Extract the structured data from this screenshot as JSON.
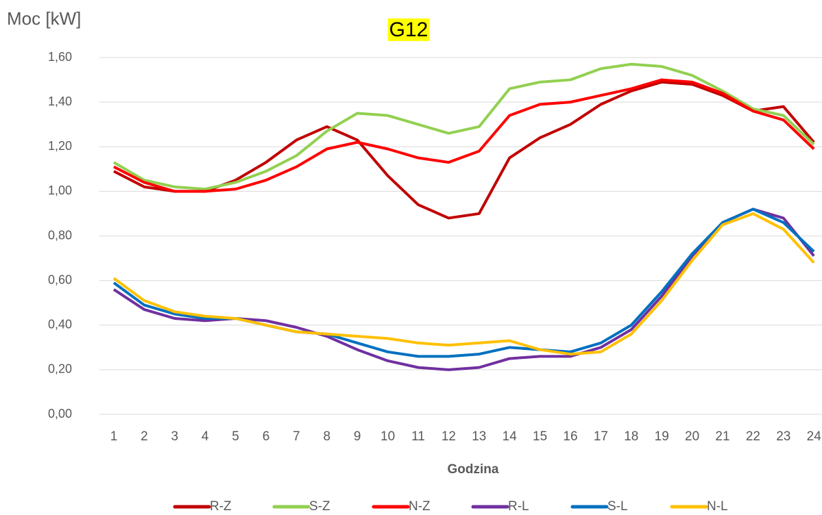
{
  "chart_data": {
    "type": "line",
    "title": "G12",
    "y_label": "Moc [kW]",
    "x_label": "Godzina",
    "categories": [
      "1",
      "2",
      "3",
      "4",
      "5",
      "6",
      "7",
      "8",
      "9",
      "10",
      "11",
      "12",
      "13",
      "14",
      "15",
      "16",
      "17",
      "18",
      "19",
      "20",
      "21",
      "22",
      "23",
      "24"
    ],
    "ylim": [
      0,
      1.6
    ],
    "yticks": [
      {
        "value": 0,
        "label": "0,00"
      },
      {
        "value": 0.2,
        "label": "0,20"
      },
      {
        "value": 0.4,
        "label": "0,40"
      },
      {
        "value": 0.6,
        "label": "0,60"
      },
      {
        "value": 0.8,
        "label": "0,80"
      },
      {
        "value": 1.0,
        "label": "1,00"
      },
      {
        "value": 1.2,
        "label": "1,20"
      },
      {
        "value": 1.4,
        "label": "1,40"
      },
      {
        "value": 1.6,
        "label": "1,60"
      }
    ],
    "grid": true,
    "legend": "bottom",
    "series": [
      {
        "name": "R-Z",
        "color": "#c00000",
        "values": [
          1.09,
          1.02,
          1.0,
          1.0,
          1.05,
          1.13,
          1.23,
          1.29,
          1.23,
          1.07,
          0.94,
          0.88,
          0.9,
          1.15,
          1.24,
          1.3,
          1.39,
          1.45,
          1.49,
          1.48,
          1.43,
          1.36,
          1.38,
          1.22
        ]
      },
      {
        "name": "S-Z",
        "color": "#92d050",
        "values": [
          1.13,
          1.05,
          1.02,
          1.01,
          1.04,
          1.09,
          1.16,
          1.27,
          1.35,
          1.34,
          1.3,
          1.26,
          1.29,
          1.46,
          1.49,
          1.5,
          1.55,
          1.57,
          1.56,
          1.52,
          1.45,
          1.37,
          1.34,
          1.21
        ]
      },
      {
        "name": "N-Z",
        "color": "#ff0000",
        "values": [
          1.11,
          1.04,
          1.0,
          1.0,
          1.01,
          1.05,
          1.11,
          1.19,
          1.22,
          1.19,
          1.15,
          1.13,
          1.18,
          1.34,
          1.39,
          1.4,
          1.43,
          1.46,
          1.5,
          1.49,
          1.44,
          1.36,
          1.32,
          1.19
        ]
      },
      {
        "name": "R-L",
        "color": "#7030a0",
        "values": [
          0.56,
          0.47,
          0.43,
          0.42,
          0.43,
          0.42,
          0.39,
          0.35,
          0.29,
          0.24,
          0.21,
          0.2,
          0.21,
          0.25,
          0.26,
          0.26,
          0.3,
          0.38,
          0.53,
          0.71,
          0.86,
          0.92,
          0.88,
          0.71
        ]
      },
      {
        "name": "S-L",
        "color": "#0070c0",
        "values": [
          0.59,
          0.49,
          0.45,
          0.43,
          0.43,
          0.4,
          0.37,
          0.36,
          0.32,
          0.28,
          0.26,
          0.26,
          0.27,
          0.3,
          0.29,
          0.28,
          0.32,
          0.4,
          0.55,
          0.72,
          0.86,
          0.92,
          0.86,
          0.73
        ]
      },
      {
        "name": "N-L",
        "color": "#ffc000",
        "values": [
          0.61,
          0.51,
          0.46,
          0.44,
          0.43,
          0.4,
          0.37,
          0.36,
          0.35,
          0.34,
          0.32,
          0.31,
          0.32,
          0.33,
          0.29,
          0.27,
          0.28,
          0.36,
          0.51,
          0.69,
          0.85,
          0.9,
          0.83,
          0.68
        ]
      }
    ]
  }
}
